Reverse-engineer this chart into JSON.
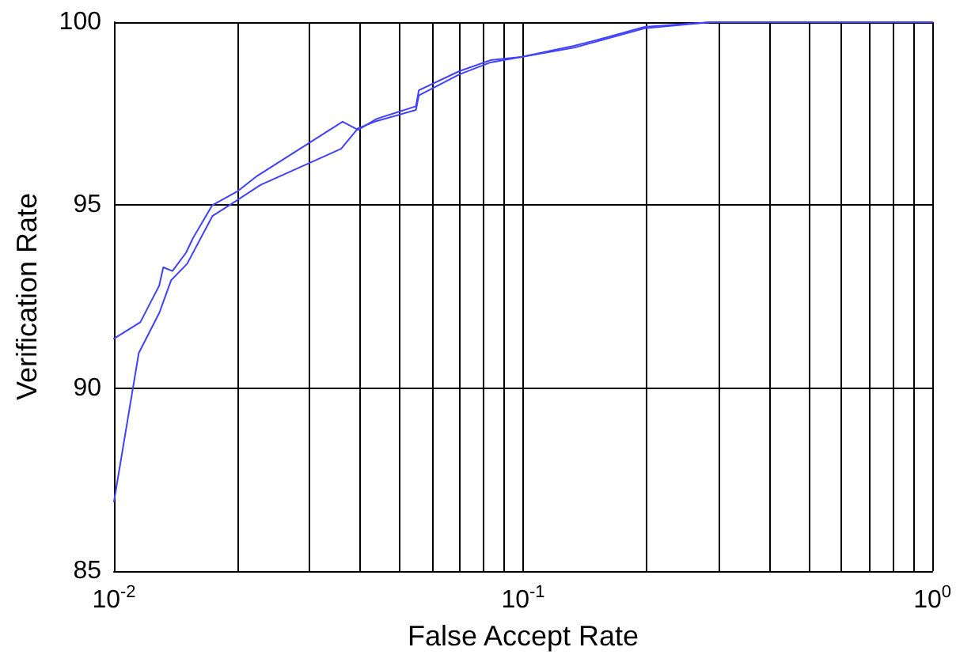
{
  "chart_data": {
    "type": "line",
    "xlabel": "False Accept Rate",
    "ylabel": "Verification Rate",
    "log": "x",
    "grid": true,
    "marker": "none",
    "line_style": "solid",
    "xlim": [
      0.01,
      1
    ],
    "ylim": [
      85,
      100
    ],
    "xticks": [
      {
        "value": 0.01,
        "label": "10$^{-2}$"
      },
      {
        "value": 0.02,
        "label": null
      },
      {
        "value": 0.03,
        "label": null
      },
      {
        "value": 0.04,
        "label": null
      },
      {
        "value": 0.05,
        "label": null
      },
      {
        "value": 0.06,
        "label": null
      },
      {
        "value": 0.07,
        "label": null
      },
      {
        "value": 0.08,
        "label": null
      },
      {
        "value": 0.09,
        "label": null
      },
      {
        "value": 0.1,
        "label": "10$^{-1}$"
      },
      {
        "value": 0.2,
        "label": null
      },
      {
        "value": 0.3,
        "label": null
      },
      {
        "value": 0.4,
        "label": null
      },
      {
        "value": 0.5,
        "label": null
      },
      {
        "value": 0.6,
        "label": null
      },
      {
        "value": 0.7,
        "label": null
      },
      {
        "value": 0.8,
        "label": null
      },
      {
        "value": 0.9,
        "label": null
      },
      {
        "value": 1,
        "label": "10$^{0}$"
      }
    ],
    "yticks": [
      85,
      90,
      95,
      100
    ],
    "series": [
      {
        "color": "#4040ff",
        "x": [
          0.01,
          0.0116,
          0.0129,
          0.0132,
          0.0139,
          0.015,
          0.0156,
          0.0174,
          0.02,
          0.0224,
          0.0362,
          0.0395,
          0.0439,
          0.0547,
          0.0556,
          0.0698,
          0.0832,
          0.099,
          0.133,
          0.15,
          0.198,
          0.288,
          1
        ],
        "values": [
          91.35,
          91.8,
          92.8,
          93.3,
          93.2,
          93.7,
          94.1,
          95.0,
          95.37,
          95.8,
          97.28,
          97.06,
          97.36,
          97.7,
          98.14,
          98.66,
          98.96,
          99.05,
          99.35,
          99.5,
          99.87,
          100,
          100
        ]
      },
      {
        "color": "#4040ff",
        "x": [
          0.01,
          0.0115,
          0.0129,
          0.0138,
          0.0151,
          0.0174,
          0.0196,
          0.0228,
          0.0359,
          0.0395,
          0.0439,
          0.0547,
          0.0556,
          0.0698,
          0.0832,
          0.099,
          0.133,
          0.198,
          0.288,
          1
        ],
        "values": [
          86.9,
          90.96,
          92.05,
          92.95,
          93.4,
          94.7,
          95.07,
          95.55,
          96.54,
          97.1,
          97.3,
          97.6,
          98.0,
          98.57,
          98.9,
          99.05,
          99.3,
          99.83,
          100,
          100
        ]
      }
    ]
  }
}
